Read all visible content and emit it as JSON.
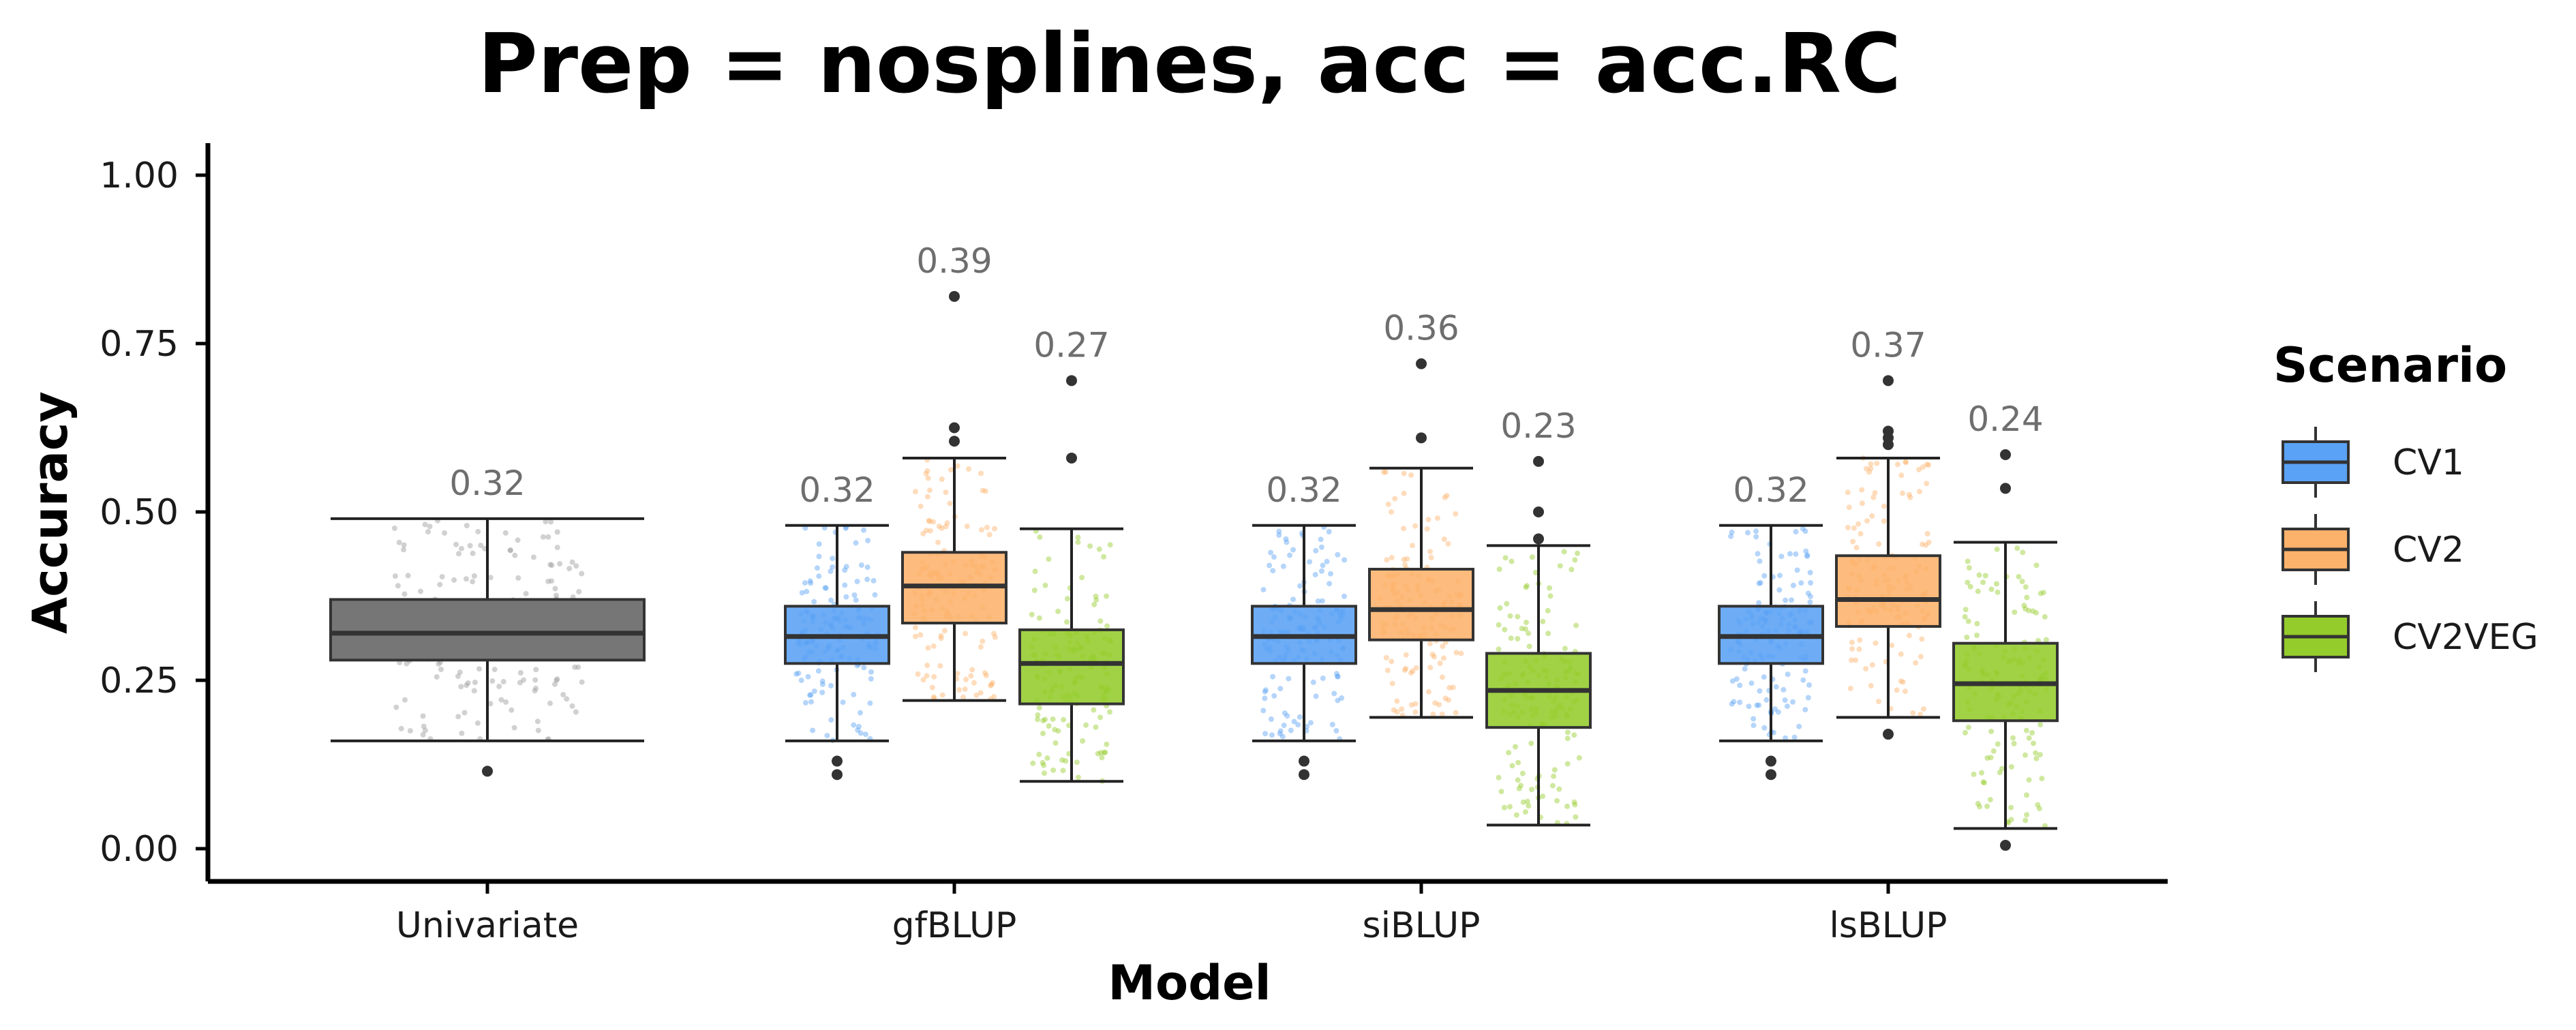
{
  "chart_data": {
    "type": "box",
    "title": "Prep = nosplines, acc = acc.RC",
    "xlabel": "Model",
    "ylabel": "Accuracy",
    "ylim": [
      -0.05,
      1.05
    ],
    "yticks": [
      "0.00",
      "0.25",
      "0.50",
      "0.75",
      "1.00"
    ],
    "ytick_values": [
      0,
      0.25,
      0.5,
      0.75,
      1.0
    ],
    "categories": [
      "Univariate",
      "gfBLUP",
      "siBLUP",
      "lsBLUP"
    ],
    "grid": false,
    "legend": {
      "title": "Scenario",
      "position": "right",
      "entries": [
        {
          "name": "CV1",
          "color": "#5aa2f5"
        },
        {
          "name": "CV2",
          "color": "#fdb26b"
        },
        {
          "name": "CV2VEG",
          "color": "#94cc2b"
        }
      ]
    },
    "univariate_color": "#767676",
    "boxes": [
      {
        "category": "Univariate",
        "scenario": null,
        "color": "#767676",
        "whisker_low": 0.16,
        "q1": 0.28,
        "median": 0.32,
        "q3": 0.37,
        "whisker_high": 0.49,
        "outliers": [
          0.115
        ],
        "mean_label": "0.32"
      },
      {
        "category": "gfBLUP",
        "scenario": "CV1",
        "color": "#5aa2f5",
        "whisker_low": 0.16,
        "q1": 0.275,
        "median": 0.315,
        "q3": 0.36,
        "whisker_high": 0.48,
        "outliers": [
          0.11,
          0.13
        ],
        "mean_label": "0.32"
      },
      {
        "category": "gfBLUP",
        "scenario": "CV2",
        "color": "#fdb26b",
        "whisker_low": 0.22,
        "q1": 0.335,
        "median": 0.39,
        "q3": 0.44,
        "whisker_high": 0.58,
        "outliers": [
          0.605,
          0.625,
          0.82
        ],
        "mean_label": "0.39"
      },
      {
        "category": "gfBLUP",
        "scenario": "CV2VEG",
        "color": "#94cc2b",
        "whisker_low": 0.1,
        "q1": 0.215,
        "median": 0.275,
        "q3": 0.325,
        "whisker_high": 0.475,
        "outliers": [
          0.58,
          0.695
        ],
        "mean_label": "0.27"
      },
      {
        "category": "siBLUP",
        "scenario": "CV1",
        "color": "#5aa2f5",
        "whisker_low": 0.16,
        "q1": 0.275,
        "median": 0.315,
        "q3": 0.36,
        "whisker_high": 0.48,
        "outliers": [
          0.11,
          0.13
        ],
        "mean_label": "0.32"
      },
      {
        "category": "siBLUP",
        "scenario": "CV2",
        "color": "#fdb26b",
        "whisker_low": 0.195,
        "q1": 0.31,
        "median": 0.355,
        "q3": 0.415,
        "whisker_high": 0.565,
        "outliers": [
          0.61,
          0.72
        ],
        "mean_label": "0.36"
      },
      {
        "category": "siBLUP",
        "scenario": "CV2VEG",
        "color": "#94cc2b",
        "whisker_low": 0.035,
        "q1": 0.18,
        "median": 0.235,
        "q3": 0.29,
        "whisker_high": 0.45,
        "outliers": [
          0.46,
          0.5,
          0.575
        ],
        "mean_label": "0.23"
      },
      {
        "category": "lsBLUP",
        "scenario": "CV1",
        "color": "#5aa2f5",
        "whisker_low": 0.16,
        "q1": 0.275,
        "median": 0.315,
        "q3": 0.36,
        "whisker_high": 0.48,
        "outliers": [
          0.11,
          0.13
        ],
        "mean_label": "0.32"
      },
      {
        "category": "lsBLUP",
        "scenario": "CV2",
        "color": "#fdb26b",
        "whisker_low": 0.195,
        "q1": 0.33,
        "median": 0.37,
        "q3": 0.435,
        "whisker_high": 0.58,
        "outliers": [
          0.17,
          0.6,
          0.61,
          0.62,
          0.695
        ],
        "mean_label": "0.37"
      },
      {
        "category": "lsBLUP",
        "scenario": "CV2VEG",
        "color": "#94cc2b",
        "whisker_low": 0.03,
        "q1": 0.19,
        "median": 0.245,
        "q3": 0.305,
        "whisker_high": 0.455,
        "outliers": [
          0.005,
          0.535,
          0.585
        ],
        "mean_label": "0.24"
      }
    ]
  }
}
